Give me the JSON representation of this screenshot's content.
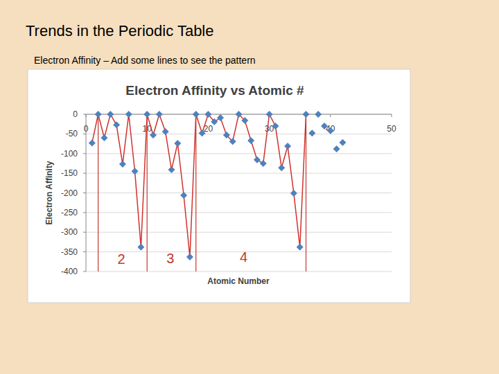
{
  "slide": {
    "title": "Trends in the Periodic Table",
    "subtitle": "Electron Affinity – Add some lines to see the pattern"
  },
  "chart_data": {
    "type": "line",
    "title": "Electron Affinity vs Atomic #",
    "x_label": "Atomic Number",
    "y_label": "Electron Affinity",
    "xlim": [
      0,
      50
    ],
    "xticks": [
      0,
      10,
      20,
      30,
      40,
      50
    ],
    "ylim": [
      -400,
      0
    ],
    "yticks": [
      -400,
      -350,
      -300,
      -250,
      -200,
      -150,
      -100,
      -50,
      0
    ],
    "grid": true,
    "series": [
      {
        "type": "line",
        "color": "#4f81bd",
        "marker": "diamond",
        "line_style": "solid",
        "x": [
          1,
          2,
          3,
          4,
          5,
          6,
          7,
          8,
          9,
          10,
          11,
          12,
          13,
          14,
          15,
          16,
          17,
          18,
          19,
          20,
          21,
          22,
          23,
          24,
          25,
          26,
          27,
          28,
          29,
          30,
          31,
          32,
          33,
          34,
          35,
          36
        ],
        "values": [
          -73,
          0,
          -60,
          0,
          -27,
          -127,
          0,
          -145,
          -338,
          0,
          -53,
          0,
          -44,
          -141,
          -74,
          -206,
          -363,
          0,
          -48,
          0,
          -19,
          -9,
          -53,
          -69,
          0,
          -16,
          -67,
          -116,
          -125,
          0,
          -30,
          -136,
          -81,
          -201,
          -338,
          0
        ]
      },
      {
        "type": "scatter",
        "color": "#4f81bd",
        "marker": "diamond",
        "x": [
          37,
          38,
          39,
          40,
          41,
          42
        ],
        "values": [
          -48,
          0,
          -30,
          -42,
          -88,
          -72
        ]
      }
    ],
    "reference_lines": [
      2,
      10,
      18,
      36
    ],
    "annotations": [
      {
        "text": "2",
        "x": 5.8,
        "y": -372
      },
      {
        "text": "3",
        "x": 13.8,
        "y": -370
      },
      {
        "text": "4",
        "x": 25.8,
        "y": -366
      }
    ]
  }
}
